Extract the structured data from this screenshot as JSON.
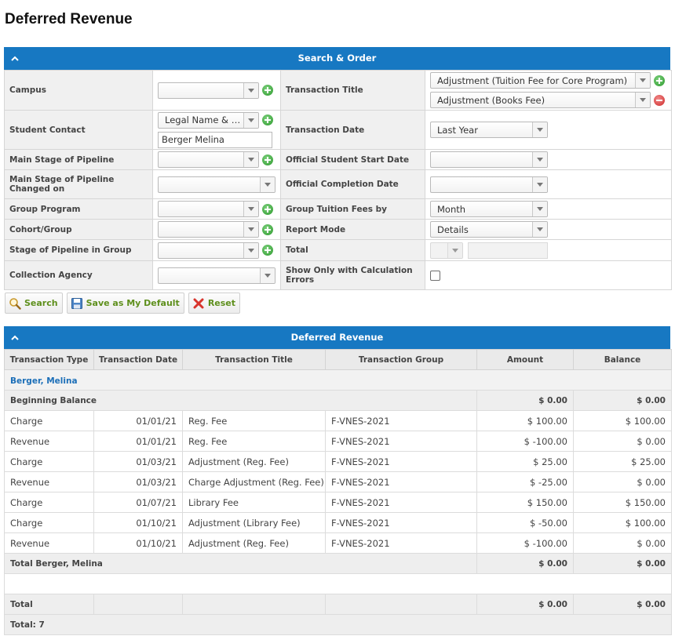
{
  "page": {
    "title": "Deferred Revenue"
  },
  "search_panel": {
    "title": "Search & Order",
    "fields": {
      "campus": {
        "label": "Campus",
        "value": ""
      },
      "transaction_title": {
        "label": "Transaction Title",
        "values": [
          "Adjustment (Tuition Fee for Core Program)",
          "Adjustment (Books Fee)"
        ]
      },
      "student_contact": {
        "label": "Student Contact",
        "mode": "Legal Name & A...",
        "value": "Berger Melina"
      },
      "transaction_date": {
        "label": "Transaction Date",
        "value": "Last Year"
      },
      "main_stage": {
        "label": "Main Stage of Pipeline",
        "value": ""
      },
      "official_start": {
        "label": "Official Student Start Date",
        "value": ""
      },
      "main_stage_changed": {
        "label": "Main Stage of Pipeline Changed on",
        "value": ""
      },
      "official_completion": {
        "label": "Official Completion Date",
        "value": ""
      },
      "group_program": {
        "label": "Group Program",
        "value": ""
      },
      "group_tuition": {
        "label": "Group Tuition Fees by",
        "value": "Month"
      },
      "cohort_group": {
        "label": "Cohort/Group",
        "value": ""
      },
      "report_mode": {
        "label": "Report Mode",
        "value": "Details"
      },
      "stage_in_group": {
        "label": "Stage of Pipeline in Group",
        "value": ""
      },
      "total": {
        "label": "Total",
        "value": ""
      },
      "collection_agency": {
        "label": "Collection Agency",
        "value": ""
      },
      "calc_errors": {
        "label": "Show Only with Calculation Errors",
        "checked": false
      }
    }
  },
  "actions": {
    "search": "Search",
    "save_default": "Save as My Default",
    "reset": "Reset"
  },
  "results_panel": {
    "title": "Deferred Revenue",
    "columns": [
      "Transaction Type",
      "Transaction Date",
      "Transaction Title",
      "Transaction Group",
      "Amount",
      "Balance"
    ],
    "student": "Berger, Melina",
    "beginning": {
      "label": "Beginning Balance",
      "amount": "$ 0.00",
      "balance": "$ 0.00"
    },
    "rows": [
      {
        "type": "Charge",
        "date": "01/01/21",
        "title": "Reg. Fee",
        "group": "F-VNES-2021",
        "amount": "$ 100.00",
        "balance": "$ 100.00"
      },
      {
        "type": "Revenue",
        "date": "01/01/21",
        "title": "Reg. Fee",
        "group": "F-VNES-2021",
        "amount": "$ -100.00",
        "balance": "$ 0.00"
      },
      {
        "type": "Charge",
        "date": "01/03/21",
        "title": "Adjustment (Reg. Fee)",
        "group": "F-VNES-2021",
        "amount": "$ 25.00",
        "balance": "$ 25.00"
      },
      {
        "type": "Revenue",
        "date": "01/03/21",
        "title": "Charge Adjustment (Reg. Fee)",
        "group": "F-VNES-2021",
        "amount": "$ -25.00",
        "balance": "$ 0.00"
      },
      {
        "type": "Charge",
        "date": "01/07/21",
        "title": "Library Fee",
        "group": "F-VNES-2021",
        "amount": "$ 150.00",
        "balance": "$ 150.00"
      },
      {
        "type": "Charge",
        "date": "01/10/21",
        "title": "Adjustment (Library Fee)",
        "group": "F-VNES-2021",
        "amount": "$ -50.00",
        "balance": "$ 100.00"
      },
      {
        "type": "Revenue",
        "date": "01/10/21",
        "title": "Adjustment (Reg. Fee)",
        "group": "F-VNES-2021",
        "amount": "$ -100.00",
        "balance": "$ 0.00"
      }
    ],
    "student_total": {
      "label": "Total Berger, Melina",
      "amount": "$ 0.00",
      "balance": "$ 0.00"
    },
    "grand_total": {
      "label": "Total",
      "amount": "$ 0.00",
      "balance": "$ 0.00"
    },
    "count": "Total: 7"
  },
  "colors": {
    "header": "#1778c2",
    "link": "#1c6fb8",
    "button_text": "#5e8f1c"
  }
}
